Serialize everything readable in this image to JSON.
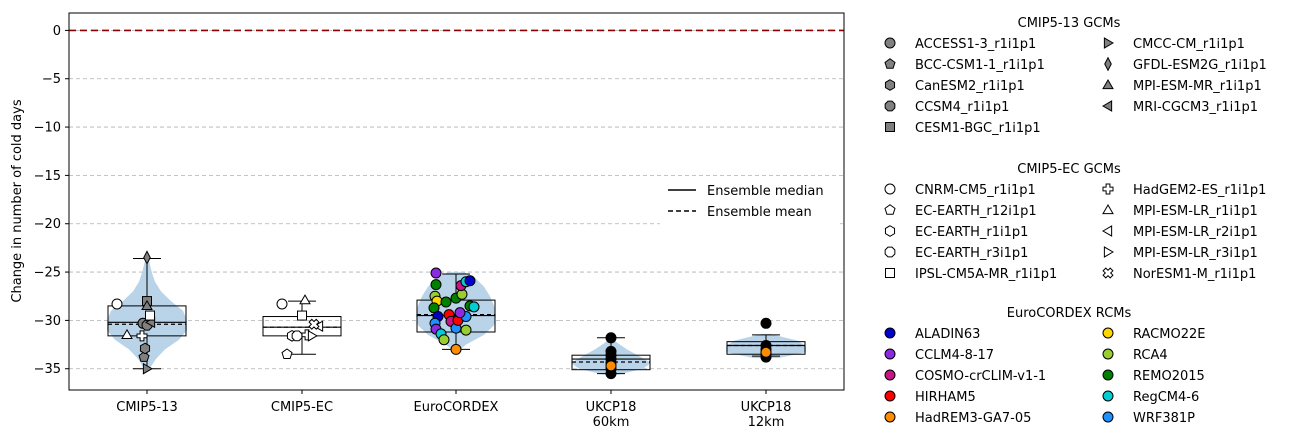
{
  "chart_data": {
    "type": "violin-box-scatter",
    "ylabel": "Change in number of cold days",
    "ylim": [
      -37.2,
      1.8
    ],
    "yticks": [
      0,
      -5,
      -10,
      -15,
      -20,
      -25,
      -30,
      -35
    ],
    "ytick_labels": [
      "0",
      "−5",
      "−10",
      "−15",
      "−20",
      "−25",
      "−30",
      "−35"
    ],
    "grid": "horizontal dashed",
    "reference_line": {
      "y": 0,
      "color": "#8b0000",
      "style": "dashed"
    },
    "inner_legend": {
      "placement": "center-right",
      "entries": [
        {
          "label": "Ensemble median",
          "style": "solid"
        },
        {
          "label": "Ensemble mean",
          "style": "dashed"
        }
      ]
    },
    "violin_color": "#b9d3e9",
    "groups": [
      {
        "label": "CMIP5-13",
        "box": {
          "whisker_low": -35.0,
          "q1": -31.6,
          "median": -30.2,
          "mean": -30.4,
          "q3": -28.5,
          "whisker_high": -23.6
        },
        "violin": {
          "ymin": -35.1,
          "ymax": -23.4,
          "profile": [
            [
              -35.1,
              0.05
            ],
            [
              -34.0,
              0.22
            ],
            [
              -33.0,
              0.45
            ],
            [
              -32.0,
              0.8
            ],
            [
              -31.0,
              1.0
            ],
            [
              -30.0,
              1.0
            ],
            [
              -29.0,
              0.9
            ],
            [
              -28.0,
              0.6
            ],
            [
              -27.0,
              0.35
            ],
            [
              -26.0,
              0.2
            ],
            [
              -25.0,
              0.12
            ],
            [
              -24.0,
              0.06
            ],
            [
              -23.4,
              0.02
            ]
          ]
        },
        "points": [
          {
            "model": "ACCESS1-3_r1i1p1",
            "y": -30.3,
            "dx": -0.04
          },
          {
            "model": "BCC-CSM1-1_r1i1p1",
            "y": -33.8,
            "dx": -0.03
          },
          {
            "model": "CanESM2_r1i1p1",
            "y": -32.9,
            "dx": -0.02
          },
          {
            "model": "CCSM4_r1i1p1",
            "y": -30.5,
            "dx": 0.0
          },
          {
            "model": "CESM1-BGC_r1i1p1",
            "y": -28.0,
            "dx": 0.0
          },
          {
            "model": "CMCC-CM_r1i1p1",
            "y": -35.0,
            "dx": 0.0
          },
          {
            "model": "GFDL-ESM2G_r1i1p1",
            "y": -23.5,
            "dx": 0.0
          },
          {
            "model": "MPI-ESM-MR_r1i1p1",
            "y": -28.5,
            "dx": 0.0
          },
          {
            "model": "MRI-CGCM3_r1i1p1",
            "y": -30.2,
            "dx": 0.04
          },
          {
            "model": "CNRM-CM5_r1i1p1",
            "y": -28.3,
            "dx": -0.3
          },
          {
            "model": "HadGEM2-ES_r1i1p1",
            "y": -31.6,
            "dx": -0.05
          },
          {
            "model": "IPSL-CM5A-MR_r1i1p1",
            "y": -29.5,
            "dx": 0.03
          },
          {
            "model": "MPI-ESM-LR_r1i1p1",
            "y": -31.5,
            "dx": -0.2
          }
        ]
      },
      {
        "label": "CMIP5-EC",
        "box": {
          "whisker_low": -33.5,
          "q1": -31.6,
          "median": -30.7,
          "mean": -30.7,
          "q3": -29.6,
          "whisker_high": -28.0
        },
        "points": [
          {
            "model": "CNRM-CM5_r1i1p1",
            "y": -28.3,
            "dx": -0.2
          },
          {
            "model": "EC-EARTH_r12i1p1",
            "y": -33.5,
            "dx": -0.15
          },
          {
            "model": "EC-EARTH_r1i1p1",
            "y": -31.6,
            "dx": -0.1
          },
          {
            "model": "EC-EARTH_r3i1p1",
            "y": -31.6,
            "dx": -0.05
          },
          {
            "model": "IPSL-CM5A-MR_r1i1p1",
            "y": -29.5,
            "dx": 0.0
          },
          {
            "model": "HadGEM2-ES_r1i1p1",
            "y": -31.5,
            "dx": 0.05
          },
          {
            "model": "MPI-ESM-LR_r1i1p1",
            "y": -27.9,
            "dx": 0.03
          },
          {
            "model": "MPI-ESM-LR_r2i1p1",
            "y": -30.6,
            "dx": 0.17
          },
          {
            "model": "MPI-ESM-LR_r3i1p1",
            "y": -31.6,
            "dx": 0.1
          },
          {
            "model": "NorESM1-M_r1i1p1",
            "y": -30.4,
            "dx": 0.12
          }
        ]
      },
      {
        "label": "EuroCORDEX",
        "box": {
          "whisker_low": -33.0,
          "q1": -31.2,
          "median": -29.5,
          "mean": -29.4,
          "q3": -27.9,
          "whisker_high": -25.2
        },
        "violin": {
          "ymin": -33.2,
          "ymax": -25.0,
          "profile": [
            [
              -33.2,
              0.05
            ],
            [
              -32.5,
              0.25
            ],
            [
              -31.5,
              0.7
            ],
            [
              -30.5,
              0.95
            ],
            [
              -29.5,
              1.0
            ],
            [
              -28.5,
              0.95
            ],
            [
              -27.5,
              0.85
            ],
            [
              -26.5,
              0.7
            ],
            [
              -25.5,
              0.45
            ],
            [
              -25.0,
              0.2
            ]
          ]
        },
        "points": [
          {
            "model": "CCLM4-8-17",
            "y": -25.1,
            "dx": -0.2
          },
          {
            "model": "REMO2015",
            "y": -26.3,
            "dx": -0.2
          },
          {
            "model": "RCA4",
            "y": -27.5,
            "dx": -0.21
          },
          {
            "model": "RACMO22E",
            "y": -28.0,
            "dx": -0.19
          },
          {
            "model": "REMO2015",
            "y": -28.7,
            "dx": -0.22
          },
          {
            "model": "ALADIN63",
            "y": -29.6,
            "dx": -0.18
          },
          {
            "model": "WRF381P",
            "y": -30.3,
            "dx": -0.21
          },
          {
            "model": "CCLM4-8-17",
            "y": -30.9,
            "dx": -0.2
          },
          {
            "model": "RegCM4-6",
            "y": -31.4,
            "dx": -0.15
          },
          {
            "model": "RCA4",
            "y": -32.0,
            "dx": -0.12
          },
          {
            "model": "REMO2015",
            "y": -28.1,
            "dx": -0.1
          },
          {
            "model": "HIRHAM5",
            "y": -29.4,
            "dx": -0.07
          },
          {
            "model": "COSMO-crCLIM-v1-1",
            "y": -30.1,
            "dx": -0.05
          },
          {
            "model": "HadREM3-GA7-05",
            "y": -33.0,
            "dx": 0.0
          },
          {
            "model": "REMO2015",
            "y": -27.7,
            "dx": 0.0
          },
          {
            "model": "WRF381P",
            "y": -30.8,
            "dx": 0.0
          },
          {
            "model": "HIRHAM5",
            "y": -30.0,
            "dx": 0.02
          },
          {
            "model": "RCA4",
            "y": -27.3,
            "dx": 0.06
          },
          {
            "model": "COSMO-crCLIM-v1-1",
            "y": -26.4,
            "dx": 0.05
          },
          {
            "model": "RegCM4-6",
            "y": -26.0,
            "dx": 0.1
          },
          {
            "model": "ALADIN63",
            "y": -25.9,
            "dx": 0.14
          },
          {
            "model": "REMO2015",
            "y": -28.5,
            "dx": 0.14
          },
          {
            "model": "RegCM4-6",
            "y": -28.6,
            "dx": 0.18
          },
          {
            "model": "RCA4",
            "y": -31.0,
            "dx": 0.1
          },
          {
            "model": "WRF381P",
            "y": -29.6,
            "dx": 0.1
          },
          {
            "model": "CCLM4-8-17",
            "y": -29.2,
            "dx": 0.04
          }
        ]
      },
      {
        "label": "UKCP18\n60km",
        "box": {
          "whisker_low": -35.5,
          "q1": -35.1,
          "median": -34.0,
          "mean": -34.3,
          "q3": -33.6,
          "whisker_high": -31.8
        },
        "violin": {
          "ymin": -35.6,
          "ymax": -31.7,
          "profile": [
            [
              -35.6,
              0.2
            ],
            [
              -35.0,
              0.8
            ],
            [
              -34.4,
              1.0
            ],
            [
              -33.8,
              0.75
            ],
            [
              -33.0,
              0.4
            ],
            [
              -32.3,
              0.15
            ],
            [
              -31.7,
              0.02
            ]
          ]
        },
        "points": [
          {
            "model": "UKCP18",
            "y": -31.8,
            "dx": 0.0
          },
          {
            "model": "UKCP18",
            "y": -33.2,
            "dx": 0.0
          },
          {
            "model": "UKCP18",
            "y": -33.6,
            "dx": 0.0
          },
          {
            "model": "UKCP18",
            "y": -34.0,
            "dx": 0.0
          },
          {
            "model": "UKCP18",
            "y": -34.4,
            "dx": 0.0
          },
          {
            "model": "UKCP18",
            "y": -35.0,
            "dx": 0.0
          },
          {
            "model": "UKCP18",
            "y": -35.5,
            "dx": 0.0
          },
          {
            "model": "HadREM3-GA7-05",
            "y": -34.7,
            "dx": 0.0
          }
        ]
      },
      {
        "label": "UKCP18\n12km",
        "box": {
          "whisker_low": -33.7,
          "q1": -33.5,
          "median": -32.6,
          "mean": -32.6,
          "q3": -32.2,
          "whisker_high": -31.5
        },
        "violin": {
          "ymin": -33.9,
          "ymax": -31.4,
          "profile": [
            [
              -33.9,
              0.3
            ],
            [
              -33.3,
              1.0
            ],
            [
              -32.7,
              1.0
            ],
            [
              -32.1,
              0.8
            ],
            [
              -31.4,
              0.1
            ]
          ]
        },
        "points": [
          {
            "model": "UKCP18",
            "y": -30.3,
            "dx": 0.0
          },
          {
            "model": "UKCP18",
            "y": -32.6,
            "dx": 0.0
          },
          {
            "model": "UKCP18",
            "y": -33.0,
            "dx": 0.0
          },
          {
            "model": "UKCP18",
            "y": -33.5,
            "dx": 0.0
          },
          {
            "model": "UKCP18",
            "y": -33.8,
            "dx": 0.0
          },
          {
            "model": "HadREM3-GA7-05",
            "y": -33.3,
            "dx": 0.0
          }
        ]
      }
    ],
    "legend": [
      {
        "title": "CMIP5-13 GCMs",
        "entries": [
          {
            "label": "ACCESS1-3_r1i1p1",
            "marker": "circle",
            "color": "#808080"
          },
          {
            "label": "BCC-CSM1-1_r1i1p1",
            "marker": "pentagon",
            "color": "#808080"
          },
          {
            "label": "CanESM2_r1i1p1",
            "marker": "hexagon",
            "color": "#808080"
          },
          {
            "label": "CCSM4_r1i1p1",
            "marker": "octagon",
            "color": "#808080"
          },
          {
            "label": "CESM1-BGC_r1i1p1",
            "marker": "square",
            "color": "#808080"
          },
          {
            "label": "CMCC-CM_r1i1p1",
            "marker": "triangle-right",
            "color": "#808080"
          },
          {
            "label": "GFDL-ESM2G_r1i1p1",
            "marker": "thin-diamond",
            "color": "#808080"
          },
          {
            "label": "MPI-ESM-MR_r1i1p1",
            "marker": "triangle-up",
            "color": "#808080"
          },
          {
            "label": "MRI-CGCM3_r1i1p1",
            "marker": "triangle-left",
            "color": "#808080"
          }
        ]
      },
      {
        "title": "CMIP5-EC GCMs",
        "entries": [
          {
            "label": "CNRM-CM5_r1i1p1",
            "marker": "circle",
            "color": "#ffffff"
          },
          {
            "label": "EC-EARTH_r12i1p1",
            "marker": "pentagon",
            "color": "#ffffff"
          },
          {
            "label": "EC-EARTH_r1i1p1",
            "marker": "hexagon",
            "color": "#ffffff"
          },
          {
            "label": "EC-EARTH_r3i1p1",
            "marker": "octagon",
            "color": "#ffffff"
          },
          {
            "label": "IPSL-CM5A-MR_r1i1p1",
            "marker": "square",
            "color": "#ffffff"
          },
          {
            "label": "HadGEM2-ES_r1i1p1",
            "marker": "plus",
            "color": "#ffffff"
          },
          {
            "label": "MPI-ESM-LR_r1i1p1",
            "marker": "triangle-up",
            "color": "#ffffff"
          },
          {
            "label": "MPI-ESM-LR_r2i1p1",
            "marker": "triangle-left",
            "color": "#ffffff"
          },
          {
            "label": "MPI-ESM-LR_r3i1p1",
            "marker": "triangle-right",
            "color": "#ffffff"
          },
          {
            "label": "NorESM1-M_r1i1p1",
            "marker": "x-filled",
            "color": "#ffffff"
          }
        ]
      },
      {
        "title": "EuroCORDEX RCMs",
        "entries": [
          {
            "label": "ALADIN63",
            "marker": "circle",
            "color": "#0000cd"
          },
          {
            "label": "CCLM4-8-17",
            "marker": "circle",
            "color": "#8a2be2"
          },
          {
            "label": "COSMO-crCLIM-v1-1",
            "marker": "circle",
            "color": "#c71585"
          },
          {
            "label": "HIRHAM5",
            "marker": "circle",
            "color": "#ff0000"
          },
          {
            "label": "HadREM3-GA7-05",
            "marker": "circle",
            "color": "#ff8c00"
          },
          {
            "label": "RACMO22E",
            "marker": "circle",
            "color": "#ffd700"
          },
          {
            "label": "RCA4",
            "marker": "circle",
            "color": "#9acd32"
          },
          {
            "label": "REMO2015",
            "marker": "circle",
            "color": "#008000"
          },
          {
            "label": "RegCM4-6",
            "marker": "circle",
            "color": "#00ced1"
          },
          {
            "label": "WRF381P",
            "marker": "circle",
            "color": "#1e90ff"
          }
        ]
      }
    ]
  }
}
